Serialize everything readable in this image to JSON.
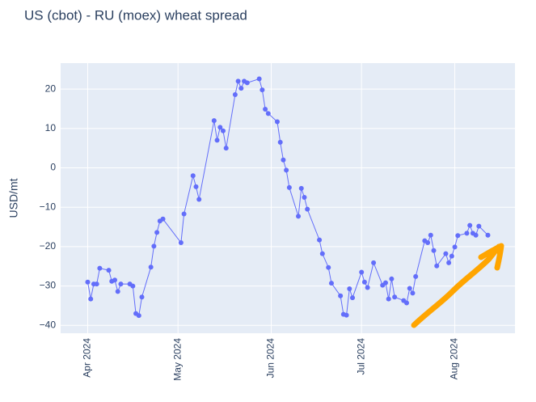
{
  "chart_data": {
    "type": "line",
    "title": "US (cbot) - RU (moex) wheat spread",
    "y_label": "USD/mt",
    "x": [
      "2024-04-01",
      "2024-04-02",
      "2024-04-03",
      "2024-04-04",
      "2024-04-05",
      "2024-04-08",
      "2024-04-09",
      "2024-04-10",
      "2024-04-11",
      "2024-04-12",
      "2024-04-15",
      "2024-04-16",
      "2024-04-17",
      "2024-04-18",
      "2024-04-19",
      "2024-04-22",
      "2024-04-23",
      "2024-04-24",
      "2024-04-25",
      "2024-04-26",
      "2024-05-02",
      "2024-05-03",
      "2024-05-06",
      "2024-05-07",
      "2024-05-08",
      "2024-05-13",
      "2024-05-14",
      "2024-05-15",
      "2024-05-16",
      "2024-05-17",
      "2024-05-20",
      "2024-05-21",
      "2024-05-22",
      "2024-05-23",
      "2024-05-24",
      "2024-05-28",
      "2024-05-29",
      "2024-05-30",
      "2024-05-31",
      "2024-06-03",
      "2024-06-04",
      "2024-06-05",
      "2024-06-06",
      "2024-06-07",
      "2024-06-10",
      "2024-06-11",
      "2024-06-12",
      "2024-06-13",
      "2024-06-17",
      "2024-06-18",
      "2024-06-20",
      "2024-06-21",
      "2024-06-24",
      "2024-06-25",
      "2024-06-26",
      "2024-06-27",
      "2024-06-28",
      "2024-07-01",
      "2024-07-02",
      "2024-07-03",
      "2024-07-05",
      "2024-07-08",
      "2024-07-09",
      "2024-07-10",
      "2024-07-11",
      "2024-07-12",
      "2024-07-15",
      "2024-07-16",
      "2024-07-17",
      "2024-07-18",
      "2024-07-19",
      "2024-07-22",
      "2024-07-23",
      "2024-07-24",
      "2024-07-25",
      "2024-07-26",
      "2024-07-29",
      "2024-07-30",
      "2024-07-31",
      "2024-08-01",
      "2024-08-02",
      "2024-08-05",
      "2024-08-06",
      "2024-08-07",
      "2024-08-08",
      "2024-08-09",
      "2024-08-12"
    ],
    "series": [
      {
        "name": "spread",
        "color": "#636efa",
        "values": [
          -29,
          -33.3,
          -29.5,
          -29.5,
          -25.5,
          -26,
          -28.8,
          -28.5,
          -31.4,
          -29.5,
          -29.5,
          -30,
          -37,
          -37.5,
          -32.8,
          -25.2,
          -19.9,
          -16.4,
          -13.5,
          -13,
          -19,
          -11.7,
          -2,
          -4.8,
          -8,
          12,
          7,
          10.3,
          9.4,
          5,
          18.6,
          22,
          20.2,
          22,
          21.6,
          22.6,
          19.8,
          14.9,
          13.8,
          11.7,
          6.5,
          2,
          -0.6,
          -5,
          -12.3,
          -5.2,
          -7.5,
          -10.5,
          -18.3,
          -21.8,
          -25.3,
          -29.3,
          -32.5,
          -37.2,
          -37.4,
          -30.7,
          -33,
          -26.5,
          -29,
          -30.4,
          -24.1,
          -29.8,
          -29.2,
          -33.3,
          -28.2,
          -32.8,
          -33.7,
          -34.3,
          -30.6,
          -31.8,
          -27.6,
          -18.5,
          -19,
          -17.1,
          -21,
          -24.9,
          -21.8,
          -24.1,
          -22.4,
          -20.1,
          -17.2,
          -16.6,
          -14.6,
          -16.6,
          -17.1,
          -14.8,
          -17.1
        ]
      }
    ],
    "xlim": [
      "2024-03-23",
      "2024-08-21"
    ],
    "xticks": [
      {
        "value": "2024-04-01",
        "label": "Apr 2024"
      },
      {
        "value": "2024-05-01",
        "label": "May 2024"
      },
      {
        "value": "2024-06-01",
        "label": "Jun 2024"
      },
      {
        "value": "2024-07-01",
        "label": "Jul 2024"
      },
      {
        "value": "2024-08-01",
        "label": "Aug 2024"
      }
    ],
    "ylim": [
      -42,
      26.6
    ],
    "yticks": [
      {
        "value": -40,
        "label": "−40"
      },
      {
        "value": -30,
        "label": "−30"
      },
      {
        "value": -20,
        "label": "−20"
      },
      {
        "value": -10,
        "label": "−10"
      },
      0,
      10,
      20
    ],
    "grid": true
  }
}
